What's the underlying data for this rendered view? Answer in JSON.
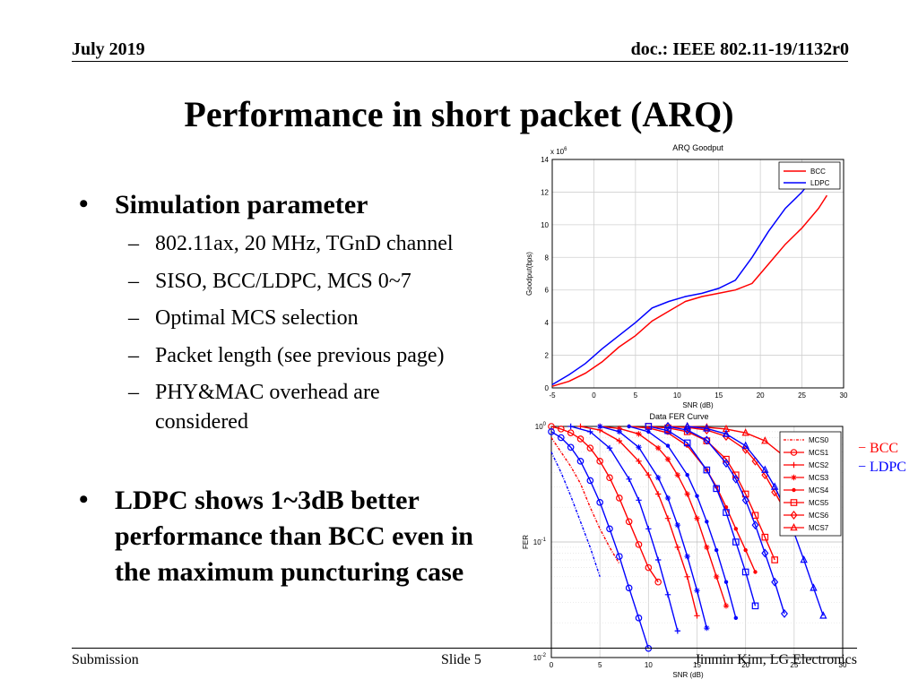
{
  "header": {
    "date": "July 2019",
    "doc": "doc.: IEEE 802.11-19/1132r0"
  },
  "title": "Performance in short packet (ARQ)",
  "bullets": [
    {
      "text": "Simulation parameter",
      "subs": [
        "802.11ax, 20 MHz, TGnD channel",
        "SISO, BCC/LDPC, MCS 0~7",
        "Optimal MCS selection",
        "Packet length (see previous page)",
        "PHY&MAC overhead are considered"
      ]
    },
    {
      "text": "LDPC shows 1~3dB better performance than BCC even in the maximum puncturing case",
      "subs": []
    }
  ],
  "side_legend": {
    "bcc": "− BCC",
    "ldpc": "− LDPC"
  },
  "footer": {
    "left": "Submission",
    "center": "Slide 5",
    "right": "Jinmin Kim, LG Electronics"
  },
  "colors": {
    "bcc": "#ff0000",
    "ldpc": "#0000ff"
  },
  "chart_data": [
    {
      "type": "line",
      "title": "ARQ Goodput",
      "xlabel": "SNR (dB)",
      "ylabel": "Goodput(bps)",
      "y_multiplier": "x 10^6",
      "xlim": [
        -5,
        30
      ],
      "ylim": [
        0,
        14
      ],
      "xticks": [
        -5,
        0,
        5,
        10,
        15,
        20,
        25,
        30
      ],
      "yticks": [
        0,
        2,
        4,
        6,
        8,
        10,
        12,
        14
      ],
      "grid": true,
      "legend": "top-right",
      "series": [
        {
          "name": "BCC",
          "color": "#ff0000",
          "x": [
            -5,
            -3,
            -1,
            1,
            3,
            5,
            7,
            9,
            11,
            13,
            15,
            17,
            19,
            21,
            23,
            25,
            27,
            28
          ],
          "y": [
            0.1,
            0.4,
            0.9,
            1.6,
            2.5,
            3.2,
            4.1,
            4.7,
            5.3,
            5.6,
            5.8,
            6.0,
            6.4,
            7.6,
            8.8,
            9.8,
            11.0,
            11.8
          ]
        },
        {
          "name": "LDPC",
          "color": "#0000ff",
          "x": [
            -5,
            -3,
            -1,
            1,
            3,
            5,
            7,
            9,
            11,
            13,
            15,
            17,
            19,
            21,
            23,
            25,
            27
          ],
          "y": [
            0.2,
            0.8,
            1.5,
            2.4,
            3.2,
            4.0,
            4.9,
            5.3,
            5.6,
            5.8,
            6.1,
            6.6,
            8.0,
            9.6,
            11.0,
            12.0,
            13.3
          ]
        }
      ]
    },
    {
      "type": "line",
      "title": "Data FER Curve",
      "xlabel": "SNR (dB)",
      "ylabel": "FER",
      "yscale": "log",
      "xlim": [
        0,
        30
      ],
      "ylim": [
        0.01,
        1
      ],
      "xticks": [
        0,
        5,
        10,
        15,
        20,
        25,
        30
      ],
      "yticks": [
        "10^0",
        "10^-1",
        "10^-2"
      ],
      "grid": true,
      "legend": "top-right",
      "legend_entries": [
        "MCS0",
        "MCS1",
        "MCS2",
        "MCS3",
        "MCS4",
        "MCS5",
        "MCS6",
        "MCS7"
      ],
      "series": [
        {
          "name": "MCS0",
          "color": "#ff0000",
          "marker": "none",
          "x": [
            0,
            1,
            2,
            3,
            4,
            5,
            6,
            7
          ],
          "y": [
            0.8,
            0.6,
            0.45,
            0.32,
            0.2,
            0.13,
            0.09,
            0.065
          ]
        },
        {
          "name": "MCS1",
          "color": "#ff0000",
          "marker": "circle",
          "x": [
            0,
            1,
            2,
            3,
            4,
            5,
            6,
            7,
            8,
            9,
            10,
            11
          ],
          "y": [
            1,
            0.95,
            0.88,
            0.78,
            0.65,
            0.5,
            0.36,
            0.24,
            0.15,
            0.095,
            0.06,
            0.045
          ]
        },
        {
          "name": "MCS2",
          "color": "#ff0000",
          "marker": "plus",
          "x": [
            3,
            5,
            7,
            9,
            10,
            11,
            12,
            13,
            14,
            15
          ],
          "y": [
            1,
            0.93,
            0.75,
            0.5,
            0.38,
            0.26,
            0.16,
            0.09,
            0.05,
            0.023
          ]
        },
        {
          "name": "MCS3",
          "color": "#ff0000",
          "marker": "star",
          "x": [
            5,
            7,
            9,
            11,
            12,
            13,
            14,
            15,
            16,
            17,
            18
          ],
          "y": [
            1,
            0.96,
            0.86,
            0.65,
            0.52,
            0.38,
            0.26,
            0.16,
            0.09,
            0.05,
            0.028
          ]
        },
        {
          "name": "MCS4",
          "color": "#ff0000",
          "marker": "dot",
          "x": [
            8,
            10,
            12,
            14,
            16,
            17,
            18,
            19,
            20,
            21
          ],
          "y": [
            1,
            0.97,
            0.88,
            0.68,
            0.42,
            0.3,
            0.2,
            0.13,
            0.085,
            0.055
          ]
        },
        {
          "name": "MCS5",
          "color": "#ff0000",
          "marker": "square",
          "x": [
            10,
            12,
            14,
            16,
            18,
            19,
            20,
            21,
            22,
            23
          ],
          "y": [
            1,
            0.97,
            0.9,
            0.75,
            0.52,
            0.38,
            0.26,
            0.17,
            0.11,
            0.07
          ]
        },
        {
          "name": "MCS6",
          "color": "#ff0000",
          "marker": "diamond",
          "x": [
            12,
            14,
            16,
            18,
            20,
            21,
            22,
            23,
            24,
            25
          ],
          "y": [
            1,
            0.98,
            0.93,
            0.82,
            0.63,
            0.5,
            0.38,
            0.27,
            0.19,
            0.13
          ]
        },
        {
          "name": "MCS7",
          "color": "#ff0000",
          "marker": "triangle",
          "x": [
            14,
            16,
            18,
            20,
            22,
            24,
            25,
            26,
            27,
            28
          ],
          "y": [
            1,
            0.98,
            0.95,
            0.88,
            0.75,
            0.55,
            0.44,
            0.34,
            0.26,
            0.2
          ]
        },
        {
          "name": "MCS0",
          "color": "#0000ff",
          "marker": "none",
          "x": [
            0,
            1,
            2,
            3,
            4,
            5
          ],
          "y": [
            0.6,
            0.4,
            0.25,
            0.15,
            0.09,
            0.05
          ]
        },
        {
          "name": "MCS1",
          "color": "#0000ff",
          "marker": "circle",
          "x": [
            0,
            1,
            2,
            3,
            4,
            5,
            6,
            7,
            8,
            9,
            10
          ],
          "y": [
            0.9,
            0.8,
            0.66,
            0.5,
            0.34,
            0.22,
            0.13,
            0.075,
            0.04,
            0.022,
            0.012
          ]
        },
        {
          "name": "MCS2",
          "color": "#0000ff",
          "marker": "plus",
          "x": [
            2,
            4,
            6,
            8,
            9,
            10,
            11,
            12,
            13
          ],
          "y": [
            1,
            0.9,
            0.65,
            0.35,
            0.23,
            0.13,
            0.07,
            0.035,
            0.017
          ]
        },
        {
          "name": "MCS3",
          "color": "#0000ff",
          "marker": "star",
          "x": [
            5,
            7,
            9,
            11,
            12,
            13,
            14,
            15,
            16
          ],
          "y": [
            1,
            0.9,
            0.66,
            0.36,
            0.24,
            0.14,
            0.075,
            0.038,
            0.018
          ]
        },
        {
          "name": "MCS4",
          "color": "#0000ff",
          "marker": "dot",
          "x": [
            8,
            10,
            12,
            14,
            15,
            16,
            17,
            18,
            19
          ],
          "y": [
            1,
            0.9,
            0.68,
            0.38,
            0.25,
            0.15,
            0.085,
            0.045,
            0.022
          ]
        },
        {
          "name": "MCS5",
          "color": "#0000ff",
          "marker": "square",
          "x": [
            10,
            12,
            14,
            16,
            17,
            18,
            19,
            20,
            21
          ],
          "y": [
            1,
            0.92,
            0.72,
            0.42,
            0.29,
            0.18,
            0.1,
            0.055,
            0.028
          ]
        },
        {
          "name": "MCS6",
          "color": "#0000ff",
          "marker": "diamond",
          "x": [
            12,
            14,
            16,
            18,
            19,
            20,
            21,
            22,
            23,
            24
          ],
          "y": [
            1,
            0.93,
            0.76,
            0.48,
            0.35,
            0.23,
            0.14,
            0.08,
            0.045,
            0.024
          ]
        },
        {
          "name": "MCS7",
          "color": "#0000ff",
          "marker": "triangle",
          "x": [
            14,
            16,
            18,
            20,
            22,
            23,
            24,
            25,
            26,
            27,
            28
          ],
          "y": [
            1,
            0.96,
            0.86,
            0.68,
            0.42,
            0.3,
            0.2,
            0.12,
            0.07,
            0.04,
            0.023
          ]
        }
      ]
    }
  ]
}
